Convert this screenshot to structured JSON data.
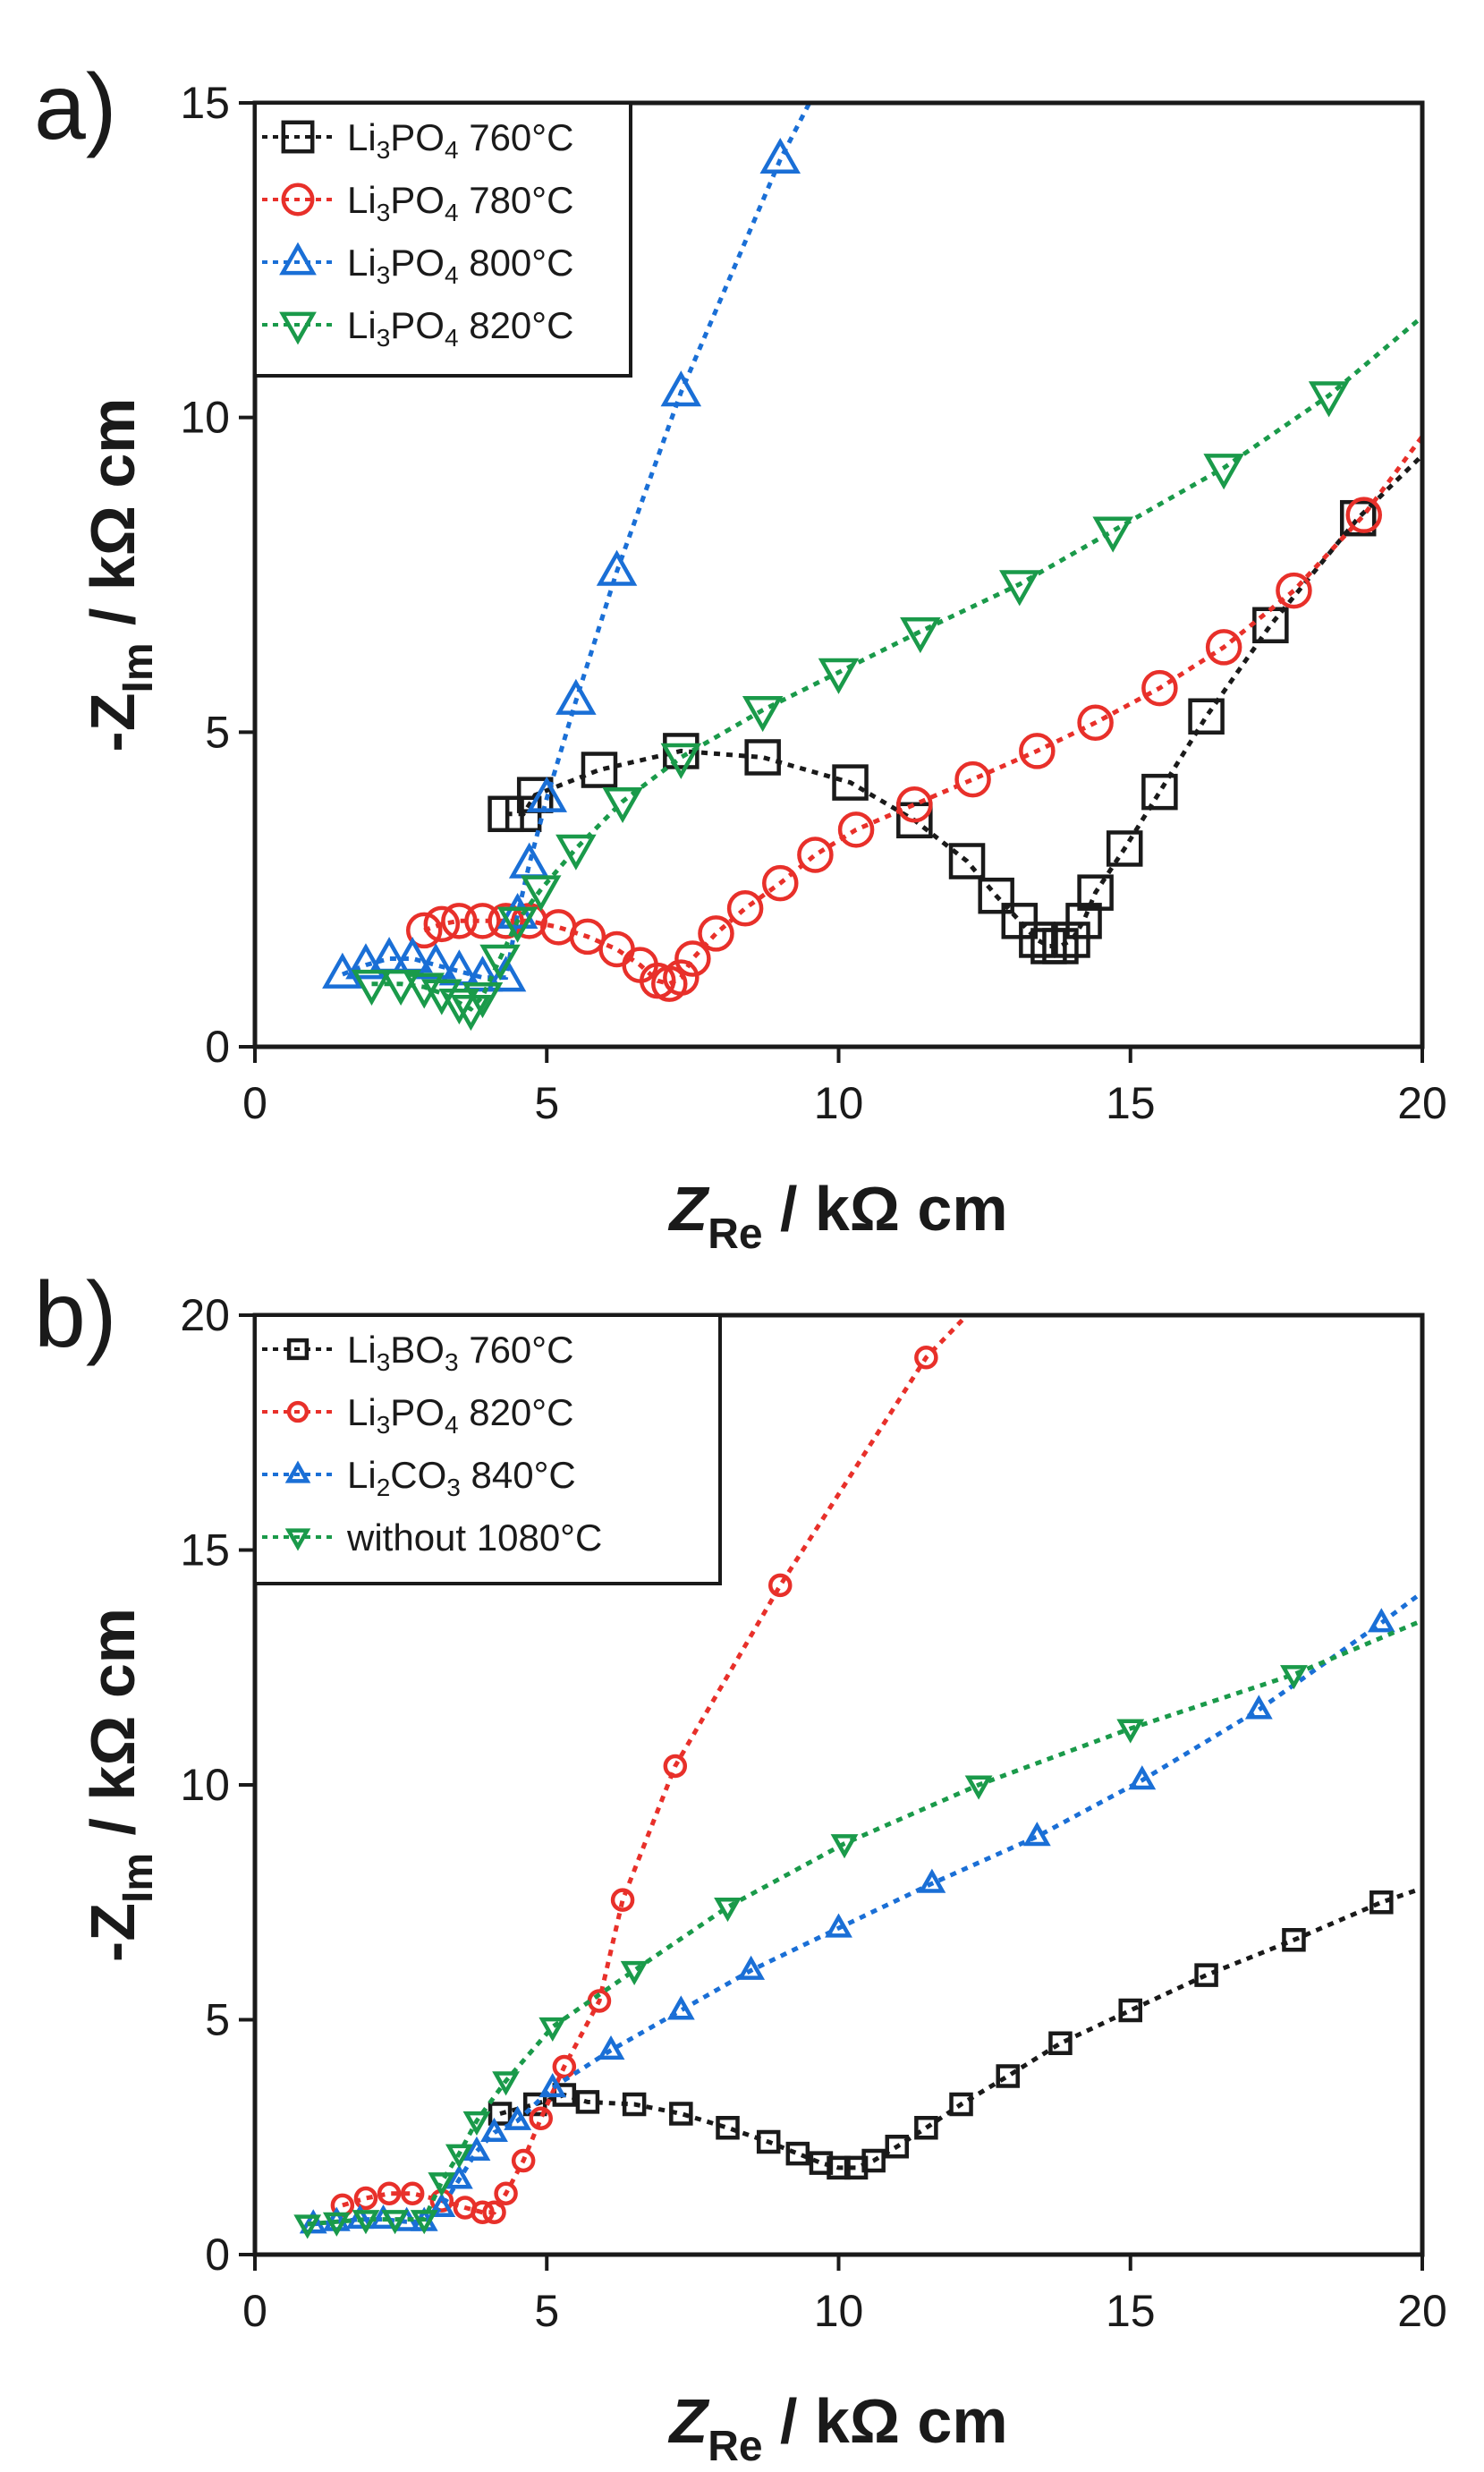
{
  "chart_data": [
    {
      "panel_label": "a)",
      "type": "scatter",
      "xlabel": {
        "main": "Z",
        "sub": "Re",
        "unit": " / kΩ cm"
      },
      "ylabel": {
        "prefix": "-Z",
        "sub": "Im",
        "unit": " / kΩ cm"
      },
      "xlim": [
        0,
        20
      ],
      "ylim": [
        0,
        15
      ],
      "xticks": [
        0,
        5,
        10,
        15,
        20
      ],
      "yticks": [
        0,
        5,
        10,
        15
      ],
      "legend_position": "top-left",
      "series": [
        {
          "label": {
            "pre": "Li",
            "s1": "3",
            "mid": "PO",
            "s2": "4",
            "post": " 760°C"
          },
          "color": "#1a1a1a",
          "marker": "square",
          "x": [
            4.3,
            4.6,
            4.8,
            5.9,
            7.3,
            8.7,
            10.2,
            11.3,
            12.2,
            12.7,
            13.1,
            13.4,
            13.6,
            13.8,
            14.0,
            14.2,
            14.4,
            14.9,
            15.5,
            16.3,
            17.4,
            18.9,
            20.0
          ],
          "y": [
            3.7,
            3.7,
            4.0,
            4.4,
            4.7,
            4.6,
            4.2,
            3.6,
            2.95,
            2.4,
            2.0,
            1.7,
            1.6,
            1.6,
            1.7,
            2.0,
            2.45,
            3.15,
            4.05,
            5.25,
            6.7,
            8.4,
            9.4
          ],
          "marker_every": [
            1,
            1,
            1,
            1,
            1,
            1,
            1,
            1,
            1,
            1,
            1,
            1,
            1,
            1,
            1,
            1,
            1,
            1,
            1,
            1,
            1,
            1,
            0
          ]
        },
        {
          "label": {
            "pre": "Li",
            "s1": "3",
            "mid": "PO",
            "s2": "4",
            "post": " 780°C"
          },
          "color": "#e8302a",
          "marker": "circle",
          "x": [
            2.9,
            3.2,
            3.5,
            3.9,
            4.3,
            4.7,
            5.2,
            5.7,
            6.2,
            6.6,
            6.9,
            7.1,
            7.3,
            7.5,
            7.9,
            8.4,
            9.0,
            9.6,
            10.3,
            11.3,
            12.3,
            13.4,
            14.4,
            15.5,
            16.6,
            17.8,
            19.0,
            20.0
          ],
          "y": [
            1.85,
            1.95,
            2.0,
            2.0,
            2.0,
            2.0,
            1.9,
            1.75,
            1.55,
            1.3,
            1.05,
            1.0,
            1.1,
            1.4,
            1.8,
            2.2,
            2.6,
            3.05,
            3.45,
            3.85,
            4.25,
            4.7,
            5.15,
            5.7,
            6.35,
            7.25,
            8.45,
            9.7
          ],
          "marker_every": [
            1,
            1,
            1,
            1,
            1,
            1,
            1,
            1,
            1,
            1,
            1,
            1,
            1,
            1,
            1,
            1,
            1,
            1,
            1,
            1,
            1,
            1,
            1,
            1,
            1,
            1,
            1,
            0
          ]
        },
        {
          "label": {
            "pre": "Li",
            "s1": "3",
            "mid": "PO",
            "s2": "4",
            "post": " 800°C"
          },
          "color": "#1a6fd6",
          "marker": "triangle-up",
          "x": [
            1.5,
            1.9,
            2.3,
            2.7,
            3.1,
            3.5,
            3.9,
            4.3,
            4.5,
            4.7,
            5.0,
            5.5,
            6.2,
            7.3,
            9.0,
            9.5
          ],
          "y": [
            1.15,
            1.3,
            1.4,
            1.4,
            1.3,
            1.2,
            1.1,
            1.1,
            2.1,
            2.9,
            3.95,
            5.5,
            7.55,
            10.4,
            14.1,
            15.0
          ],
          "marker_every": [
            1,
            1,
            1,
            1,
            1,
            1,
            1,
            1,
            1,
            1,
            1,
            1,
            1,
            1,
            1,
            0
          ]
        },
        {
          "label": {
            "pre": "Li",
            "s1": "3",
            "mid": "PO",
            "s2": "4",
            "post": " 820°C"
          },
          "color": "#1a9a4a",
          "marker": "triangle-down",
          "x": [
            2.0,
            2.5,
            2.9,
            3.2,
            3.5,
            3.7,
            3.9,
            4.2,
            4.5,
            4.9,
            5.5,
            6.3,
            7.3,
            8.7,
            10.0,
            11.4,
            13.1,
            14.7,
            16.6,
            18.4,
            20.0
          ],
          "y": [
            1.0,
            1.0,
            0.95,
            0.85,
            0.7,
            0.6,
            0.8,
            1.4,
            2.0,
            2.5,
            3.15,
            3.9,
            4.6,
            5.35,
            5.95,
            6.6,
            7.35,
            8.2,
            9.2,
            10.35,
            11.6
          ],
          "marker_every": [
            1,
            1,
            1,
            1,
            1,
            1,
            1,
            1,
            1,
            1,
            1,
            1,
            1,
            1,
            1,
            1,
            1,
            1,
            1,
            1,
            0
          ]
        }
      ]
    },
    {
      "panel_label": "b)",
      "type": "scatter",
      "xlabel": {
        "main": "Z",
        "sub": "Re",
        "unit": " / kΩ cm"
      },
      "ylabel": {
        "prefix": "-Z",
        "sub": "Im",
        "unit": " / kΩ cm"
      },
      "xlim": [
        0,
        20
      ],
      "ylim": [
        0,
        20
      ],
      "xticks": [
        0,
        5,
        10,
        15,
        20
      ],
      "yticks": [
        0,
        5,
        10,
        15,
        20
      ],
      "legend_position": "top-left",
      "series": [
        {
          "label": {
            "pre": "Li",
            "s1": "3",
            "mid": "BO",
            "s2": "3",
            "post": " 760°C"
          },
          "color": "#1a1a1a",
          "marker": "square",
          "x": [
            4.2,
            4.8,
            5.3,
            5.7,
            6.5,
            7.3,
            8.1,
            8.8,
            9.3,
            9.7,
            10.0,
            10.3,
            10.6,
            11.0,
            11.5,
            12.1,
            12.9,
            13.8,
            15.0,
            16.3,
            17.8,
            19.3,
            20.0
          ],
          "y": [
            3.0,
            3.2,
            3.4,
            3.25,
            3.2,
            3.0,
            2.7,
            2.4,
            2.15,
            1.95,
            1.85,
            1.85,
            2.0,
            2.3,
            2.7,
            3.2,
            3.8,
            4.5,
            5.2,
            5.95,
            6.7,
            7.5,
            7.8
          ],
          "marker_every": [
            1,
            1,
            1,
            1,
            1,
            1,
            1,
            1,
            1,
            1,
            1,
            1,
            1,
            1,
            1,
            1,
            1,
            1,
            1,
            1,
            1,
            1,
            0
          ]
        },
        {
          "label": {
            "pre": "Li",
            "s1": "3",
            "mid": "PO",
            "s2": "4",
            "post": " 820°C"
          },
          "color": "#e8302a",
          "marker": "circle",
          "x": [
            1.5,
            1.9,
            2.3,
            2.7,
            3.2,
            3.6,
            3.9,
            4.1,
            4.3,
            4.6,
            4.9,
            5.3,
            5.9,
            6.3,
            7.2,
            9.0,
            11.5,
            12.2
          ],
          "y": [
            1.05,
            1.2,
            1.3,
            1.3,
            1.15,
            1.0,
            0.9,
            0.9,
            1.3,
            2.0,
            2.9,
            4.0,
            5.4,
            7.55,
            10.4,
            14.25,
            19.1,
            20.0
          ],
          "marker_every": [
            1,
            1,
            1,
            1,
            1,
            1,
            1,
            1,
            1,
            1,
            1,
            1,
            1,
            1,
            1,
            1,
            1,
            0
          ]
        },
        {
          "label": {
            "pre": "Li",
            "s1": "2",
            "mid": "CO",
            "s2": "3",
            "post": " 840°C"
          },
          "color": "#1a6fd6",
          "marker": "triangle-up",
          "x": [
            1.0,
            1.4,
            1.8,
            2.2,
            2.6,
            2.9,
            3.2,
            3.5,
            3.8,
            4.1,
            4.5,
            5.1,
            6.1,
            7.3,
            8.5,
            10.0,
            11.6,
            13.4,
            15.2,
            17.2,
            19.3,
            20.0
          ],
          "y": [
            0.65,
            0.7,
            0.75,
            0.75,
            0.7,
            0.7,
            1.0,
            1.6,
            2.2,
            2.6,
            2.85,
            3.55,
            4.35,
            5.2,
            6.05,
            6.95,
            7.9,
            8.9,
            10.1,
            11.6,
            13.45,
            14.1
          ],
          "marker_every": [
            1,
            1,
            1,
            1,
            1,
            1,
            1,
            1,
            1,
            1,
            1,
            1,
            1,
            1,
            1,
            1,
            1,
            1,
            1,
            1,
            1,
            0
          ]
        },
        {
          "label": {
            "text": "without 1080°C"
          },
          "color": "#1a9a4a",
          "marker": "triangle-down",
          "x": [
            0.9,
            1.4,
            1.9,
            2.4,
            2.9,
            3.2,
            3.5,
            3.8,
            4.3,
            5.1,
            6.5,
            8.1,
            10.1,
            12.4,
            15.0,
            17.8,
            20.0
          ],
          "y": [
            0.65,
            0.7,
            0.75,
            0.75,
            0.75,
            1.55,
            2.15,
            2.85,
            3.7,
            4.85,
            6.05,
            7.4,
            8.75,
            10.0,
            11.2,
            12.35,
            13.5
          ],
          "marker_every": [
            1,
            1,
            1,
            1,
            1,
            1,
            1,
            1,
            1,
            1,
            1,
            1,
            1,
            1,
            1,
            1,
            0
          ]
        }
      ]
    }
  ]
}
